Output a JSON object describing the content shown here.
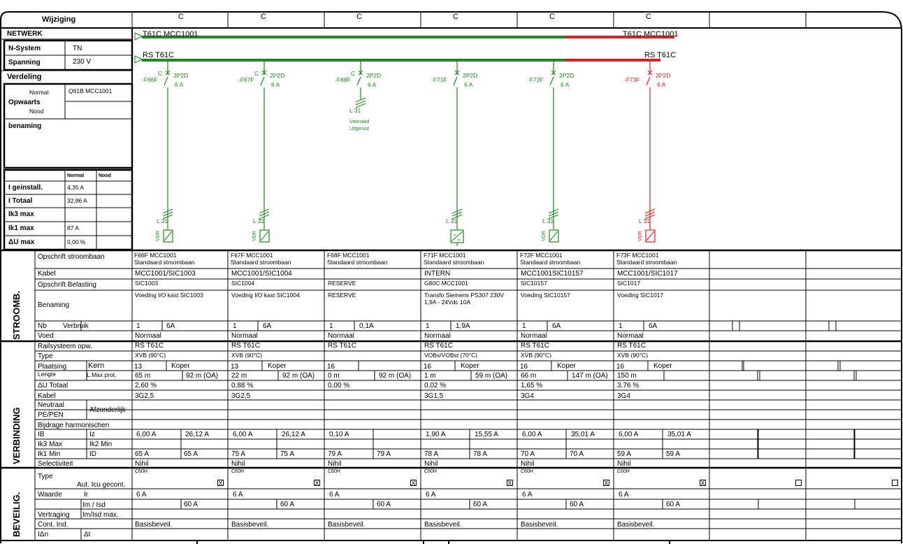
{
  "header": {
    "wijziging": "Wijziging",
    "rev": [
      "C",
      "C",
      "C",
      "C",
      "C",
      "C"
    ]
  },
  "netwerk": {
    "title": "NETWERK",
    "nsystem_label": "N-System",
    "nsystem_value": "TN",
    "spanning_label": "Spanning",
    "spanning_value": "230 V"
  },
  "verdeling": {
    "title": "Verdeling",
    "normal": "Normal",
    "nood": "Nood",
    "opwaarts": "Opwaarts",
    "opwaarts_normal": "Q61B MCC1001",
    "benaming": "benaming"
  },
  "currents": {
    "normal": "Normal",
    "nood": "Nood",
    "rows": [
      {
        "label": "I geinstall.",
        "value": "4,35 A"
      },
      {
        "label": "I Totaal",
        "value": "32,86 A"
      },
      {
        "label": "Ik3 max",
        "value": ""
      },
      {
        "label": "Ik1 max",
        "value": "87 A"
      },
      {
        "label": "ΔU max",
        "value": "0,00 %"
      }
    ]
  },
  "busbars": {
    "bus1_left": "T61C MCC1001",
    "bus1_right": "T61C MCC1001",
    "bus2_left": "RS T61C",
    "bus2_right": "RS T61C",
    "colors": {
      "green": "#1c8a1c",
      "red": "#e02020"
    }
  },
  "feeders": [
    {
      "tag": "-F66F",
      "poles": "2P2D",
      "rating": "6 A",
      "c": "C",
      "cable": "L 31",
      "load": "VDR",
      "spare": false
    },
    {
      "tag": "-F67F",
      "poles": "2P2D",
      "rating": "6 A",
      "c": "C",
      "cable": "L 31",
      "load": "VDR",
      "spare": false
    },
    {
      "tag": "-F68F",
      "poles": "2P2D",
      "rating": "6 A",
      "c": "C",
      "cable": "L 31",
      "note1": "Voorraad",
      "note2": "Uitgerust",
      "spare": true
    },
    {
      "tag": "-F71F",
      "poles": "2P2D",
      "rating": "6 A",
      "c": "",
      "cable": "L 31",
      "load": "",
      "spare": false
    },
    {
      "tag": "-F72F",
      "poles": "2P2D",
      "rating": "6 A",
      "c": "",
      "cable": "L 31",
      "load": "VDR",
      "spare": false
    },
    {
      "tag": "-F73F",
      "poles": "2P2D",
      "rating": "6 A",
      "c": "",
      "cable": "L 31",
      "load": "VDR",
      "spare": false
    }
  ],
  "sections": {
    "stroomb": "STROOMB.",
    "verbinding": "VERBINDING",
    "beveilig": "BEVEILIG."
  },
  "labels": {
    "opschrift_stroombaan": "Opschrift stroombaan",
    "kabel": "Kabel",
    "opschrift_belasting": "Opschrift Belasting",
    "benaming": "Benaming",
    "nb": "Nb",
    "verbruik": "Verbruik",
    "voed": "Voed",
    "railsysteem": "Railsysteem opw.",
    "type": "Type",
    "plaatsing": "Plaatsing",
    "kern": "Kern",
    "lengte": "Lengte",
    "lmax": "L.Max prot.",
    "du_totaal": "ΔU Totaal",
    "kabel2": "Kabel",
    "neutraal": "Neutraal",
    "pepen": "PE/PEN",
    "afzonderlijk": "Afzonderlijk",
    "harmonischen": "Bijdrage harmonischen",
    "ib": "IB",
    "iz": "Iz",
    "ik3max": "Ik3 Max",
    "ik2min": "Ik2 Min",
    "ik1min": "Ik1 Min",
    "id": "ID",
    "selectiviteit": "Selectiviteit",
    "type_b": "Type",
    "aut_icu": "Aut. Icu gecont.",
    "waarde": "Waarde",
    "ir": "Ir",
    "imisd": "Im / Isd",
    "vertraging": "Vertraging",
    "imisdmax": "Im/Isd max.",
    "cont_ind": "Cont. Ind.",
    "idn": "IΔn",
    "dt": "Δt"
  },
  "columns": [
    {
      "str1": "F66F MCC1001",
      "str2": "Standaard stroombaan",
      "kabel": "MCC1001/SIC1003",
      "belasting": "SIC1003",
      "benaming": "Voeding I/O kast SIC1003",
      "benaming2": "",
      "nb": "1",
      "verbruik": "6A",
      "voed": "Normaal",
      "rail": "RS T61C",
      "type": "XVB (90°C)",
      "plaatsing": "13",
      "kern": "Koper",
      "lengte": "65 m",
      "lmax": "92 m (OA)",
      "du": "2,60 %",
      "kabelsec": "3G2,5",
      "ib": "6,00 A",
      "iz": "26,12 A",
      "ik1": "65 A",
      "id": "65 A",
      "sel": "Nihil",
      "btype": "C60H",
      "aut": "X",
      "ir": "6 A",
      "imisd": "60 A",
      "cont": "Basisbeveil."
    },
    {
      "str1": "F67F MCC1001",
      "str2": "Standaard stroombaan",
      "kabel": "MCC1001/SIC1004",
      "belasting": "SIC1004",
      "benaming": "Voeding I/O kast SIC1004",
      "benaming2": "",
      "nb": "1",
      "verbruik": "6A",
      "voed": "Normaal",
      "rail": "RS T61C",
      "type": "XVB (90°C)",
      "plaatsing": "13",
      "kern": "Koper",
      "lengte": "22 m",
      "lmax": "92 m (OA)",
      "du": "0,88 %",
      "kabelsec": "3G2,5",
      "ib": "6,00 A",
      "iz": "26,12 A",
      "ik1": "75 A",
      "id": "75 A",
      "sel": "Nihil",
      "btype": "C60H",
      "aut": "X",
      "ir": "6 A",
      "imisd": "60 A",
      "cont": "Basisbeveil."
    },
    {
      "str1": "F68F MCC1001",
      "str2": "Standaard stroombaan",
      "kabel": "",
      "belasting": "RESERVE",
      "benaming": "RESERVE",
      "benaming2": "",
      "nb": "1",
      "verbruik": "0,1A",
      "voed": "Normaal",
      "rail": "RS T61C",
      "type": "",
      "plaatsing": "16",
      "kern": "",
      "lengte": "0 m",
      "lmax": "92 m (OA)",
      "du": "0,00 %",
      "kabelsec": "",
      "ib": "0,10 A",
      "iz": "",
      "ik1": "79 A",
      "id": "79 A",
      "sel": "Nihil",
      "btype": "C60H",
      "aut": "X",
      "ir": "6 A",
      "imisd": "60 A",
      "cont": "Basisbeveil."
    },
    {
      "str1": "F71F MCC1001",
      "str2": "Standaard stroombaan",
      "kabel": "INTERN",
      "belasting": "G80C MCC1001",
      "benaming": "Transfo Siemens PS307 230V",
      "benaming2": "1,9A - 24Vdc 10A",
      "nb": "1",
      "verbruik": "1,9A",
      "voed": "Normaal",
      "rail": "RS T61C",
      "type": "VOBs/VOBst (70°C)",
      "plaatsing": "16",
      "kern": "Koper",
      "lengte": "1 m",
      "lmax": "59 m (OA)",
      "du": "0,02 %",
      "kabelsec": "3G1,5",
      "ib": "1,90 A",
      "iz": "15,55 A",
      "ik1": "78 A",
      "id": "78 A",
      "sel": "Nihil",
      "btype": "C60H",
      "aut": "X",
      "ir": "6 A",
      "imisd": "60 A",
      "cont": "Basisbeveil."
    },
    {
      "str1": "F72F MCC1001",
      "str2": "Standaard stroombaan",
      "kabel": "MCC1001SIC10157",
      "belasting": "SIC10157",
      "benaming": "Voeding SIC10157",
      "benaming2": "",
      "nb": "1",
      "verbruik": "6A",
      "voed": "Normaal",
      "rail": "RS T61C",
      "type": "XVB (90°C)",
      "plaatsing": "16",
      "kern": "Koper",
      "lengte": "66 m",
      "lmax": "147 m (OA)",
      "du": "1,65 %",
      "kabelsec": "3G4",
      "ib": "6,00 A",
      "iz": "35,01 A",
      "ik1": "70 A",
      "id": "70 A",
      "sel": "Nihil",
      "btype": "C60H",
      "aut": "X",
      "ir": "6 A",
      "imisd": "60 A",
      "cont": "Basisbeveil."
    },
    {
      "str1": "F73F MCC1001",
      "str2": "Standaard stroombaan",
      "kabel": "MCC1001/SIC1017",
      "belasting": "SIC1017",
      "benaming": "Voeding SIC1017",
      "benaming2": "",
      "nb": "1",
      "verbruik": "6A",
      "voed": "Normaal",
      "rail": "RS T61C",
      "type": "XVB (90°C)",
      "plaatsing": "16",
      "kern": "Koper",
      "lengte": "150 m",
      "lmax": "",
      "du": "3,76 %",
      "kabelsec": "3G4",
      "ib": "6,00 A",
      "iz": "35,01 A",
      "ik1": "59 A",
      "id": "59 A",
      "sel": "Nihil",
      "btype": "C60H",
      "aut": "X",
      "ir": "6 A",
      "imisd": "60 A",
      "cont": "Basisbeveil."
    }
  ]
}
